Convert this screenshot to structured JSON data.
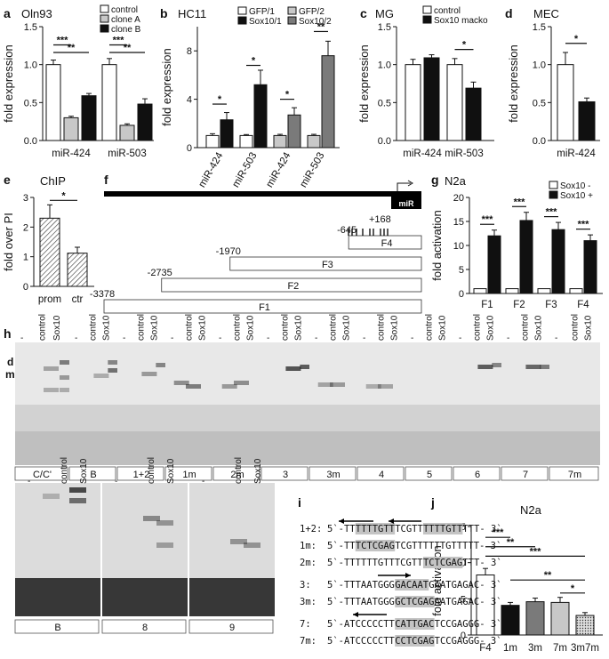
{
  "panel_labels": {
    "a": "a",
    "b": "b",
    "c": "c",
    "d": "d",
    "e": "e",
    "f": "f",
    "g": "g",
    "h": "h",
    "i": "i",
    "j": "j"
  },
  "colors": {
    "white": "#ffffff",
    "lightgray": "#c8c8c8",
    "darkgray": "#7a7a7a",
    "black": "#101010",
    "highlight": "#c4c4c4"
  },
  "chart_data": [
    {
      "id": "a",
      "type": "bar",
      "title": "Oln93",
      "ylabel": "fold expression",
      "categories": [
        "miR-424",
        "miR-503"
      ],
      "ylim": [
        0,
        1.5
      ],
      "yticks": [
        0.0,
        0.5,
        1.0,
        1.5
      ],
      "series": [
        {
          "name": "control",
          "values": [
            1.0,
            1.0
          ],
          "err": [
            0.06,
            0.08
          ]
        },
        {
          "name": "clone A",
          "values": [
            0.3,
            0.2
          ],
          "err": [
            0.02,
            0.02
          ]
        },
        {
          "name": "clone B",
          "values": [
            0.59,
            0.48
          ],
          "err": [
            0.03,
            0.07
          ]
        }
      ],
      "significance": [
        {
          "label": "***"
        },
        {
          "label": "**"
        },
        {
          "label": "***"
        },
        {
          "label": "**"
        }
      ]
    },
    {
      "id": "b",
      "type": "bar",
      "title": "HC11",
      "ylabel": "fold expression",
      "categories": [
        "miR-424",
        "miR-503",
        "miR-424",
        "miR-503"
      ],
      "ylim": [
        0,
        10
      ],
      "yticks": [
        0,
        4,
        8
      ],
      "series": [
        {
          "name": "GFP/1",
          "values": [
            1.0,
            1.0,
            null,
            null
          ]
        },
        {
          "name": "Sox10/1",
          "values": [
            2.3,
            5.2,
            null,
            null
          ]
        },
        {
          "name": "GFP/2",
          "values": [
            null,
            null,
            1.0,
            1.0
          ]
        },
        {
          "name": "Sox10/2",
          "values": [
            null,
            null,
            2.7,
            7.6
          ]
        }
      ],
      "err": [
        0.15,
        0.6,
        0.08,
        1.2,
        0.1,
        0.6,
        0.1,
        1.2
      ],
      "significance": [
        {
          "label": "*"
        },
        {
          "label": "*"
        },
        {
          "label": "*"
        },
        {
          "label": "**"
        }
      ]
    },
    {
      "id": "c",
      "type": "bar",
      "title": "MG",
      "ylabel": "fold expression",
      "categories": [
        "miR-424",
        "miR-503"
      ],
      "ylim": [
        0,
        1.5
      ],
      "yticks": [
        0.0,
        0.5,
        1.0,
        1.5
      ],
      "series": [
        {
          "name": "control",
          "values": [
            1.0,
            1.0
          ],
          "err": [
            0.07,
            0.08
          ]
        },
        {
          "name": "Sox10 macko",
          "values": [
            1.09,
            0.69
          ],
          "err": [
            0.04,
            0.08
          ]
        }
      ],
      "significance": [
        {
          "label": "*"
        }
      ]
    },
    {
      "id": "d",
      "type": "bar",
      "title": "MEC",
      "ylabel": "fold expression",
      "categories": [
        "miR-424"
      ],
      "ylim": [
        0,
        1.5
      ],
      "yticks": [
        0.0,
        0.5,
        1.0,
        1.5
      ],
      "series": [
        {
          "name": "control",
          "values": [
            1.0
          ],
          "err": [
            0.16
          ]
        },
        {
          "name": "Sox10",
          "values": [
            0.51
          ],
          "err": [
            0.05
          ]
        }
      ],
      "significance": [
        {
          "label": "*"
        }
      ]
    },
    {
      "id": "e",
      "type": "bar",
      "title": "ChIP",
      "ylabel": "fold over PI",
      "categories": [
        "prom",
        "ctr"
      ],
      "ylim": [
        0,
        3
      ],
      "yticks": [
        0,
        1,
        2,
        3
      ],
      "values": [
        2.3,
        1.12
      ],
      "err": [
        0.45,
        0.2
      ],
      "significance": [
        {
          "label": "*"
        }
      ]
    },
    {
      "id": "g",
      "type": "bar",
      "title": "N2a",
      "ylabel": "fold activation",
      "categories": [
        "F1",
        "F2",
        "F3",
        "F4"
      ],
      "ylim": [
        0,
        20
      ],
      "yticks": [
        0,
        5,
        10,
        15,
        20
      ],
      "series": [
        {
          "name": "Sox10 -",
          "values": [
            1,
            1,
            1,
            1
          ]
        },
        {
          "name": "Sox10 +",
          "values": [
            12.0,
            15.2,
            13.3,
            11.0
          ]
        }
      ],
      "err": [
        1.2,
        1.7,
        1.5,
        1.2
      ],
      "significance": [
        {
          "label": "***"
        },
        {
          "label": "***"
        },
        {
          "label": "***"
        },
        {
          "label": "***"
        }
      ]
    },
    {
      "id": "j",
      "type": "bar",
      "title": "N2a",
      "ylabel": "fold activation",
      "categories": [
        "F4",
        "1m",
        "3m",
        "7m",
        "3m7m"
      ],
      "ylim": [
        0,
        15
      ],
      "yticks": [
        0,
        5,
        10,
        15
      ],
      "values": [
        8.3,
        4.1,
        4.6,
        4.5,
        2.7
      ],
      "err": [
        0.9,
        0.4,
        0.5,
        0.7,
        0.4
      ],
      "significance": [
        {
          "label": "***"
        },
        {
          "label": "**"
        },
        {
          "label": "***"
        },
        {
          "label": "**"
        },
        {
          "label": "*"
        }
      ]
    }
  ],
  "promoter": {
    "mir_label": "miR",
    "fragments": [
      {
        "name": "F4",
        "start": -645,
        "start_label": "-645"
      },
      {
        "name": "F3",
        "start": -1970,
        "start_label": "-1970"
      },
      {
        "name": "F2",
        "start": -2735,
        "start_label": "-2735"
      },
      {
        "name": "F1",
        "start": -3378,
        "start_label": "-3378"
      }
    ],
    "end_label": "+168"
  },
  "gel": {
    "band_labels": {
      "d": "d",
      "m": "m"
    },
    "lane_headers": {
      "dash": "-",
      "control": "control",
      "sox10": "Sox10"
    },
    "row1_probes": [
      "C/C'",
      "B",
      "1+2",
      "1m",
      "2m",
      "3",
      "3m",
      "4",
      "5",
      "6",
      "7",
      "7m"
    ],
    "row2_probes": [
      "B",
      "8",
      "9"
    ]
  },
  "sequences": [
    {
      "name": "1+2:",
      "parts": [
        "5`-TT",
        "TTTTGTT",
        "TCGTT",
        "TTTTGTT",
        "TTT- 3`"
      ],
      "hl": [
        1,
        3
      ]
    },
    {
      "name": "1m:",
      "parts": [
        "5`-TT",
        "TCTCGAG",
        "TCGTTTTTTGTTTTT- 3`"
      ],
      "hl": [
        1
      ]
    },
    {
      "name": "2m:",
      "parts": [
        "5`-TTTTTTGTTTCGTT",
        "TCTCGAG",
        "TTT- 3`"
      ],
      "hl": [
        1
      ]
    },
    {
      "name": "3:",
      "parts": [
        "5`-TTTAATGGG",
        "GACAAT",
        "GAATGAGAC- 3`"
      ],
      "hl": [
        1
      ]
    },
    {
      "name": "3m:",
      "parts": [
        "5`-TTTAATGGG",
        "GCTCGAG",
        "AATGAGAC- 3`"
      ],
      "hl": [
        1
      ]
    },
    {
      "name": "7:",
      "parts": [
        "5`-ATCCCCCTT",
        "CATTGAC",
        "TCCGAGGG- 3`"
      ],
      "hl": [
        1
      ]
    },
    {
      "name": "7m:",
      "parts": [
        "5`-ATCCCCCTT",
        "CCTCGAG",
        "TCCGAGGG- 3`"
      ],
      "hl": [
        1
      ]
    }
  ]
}
